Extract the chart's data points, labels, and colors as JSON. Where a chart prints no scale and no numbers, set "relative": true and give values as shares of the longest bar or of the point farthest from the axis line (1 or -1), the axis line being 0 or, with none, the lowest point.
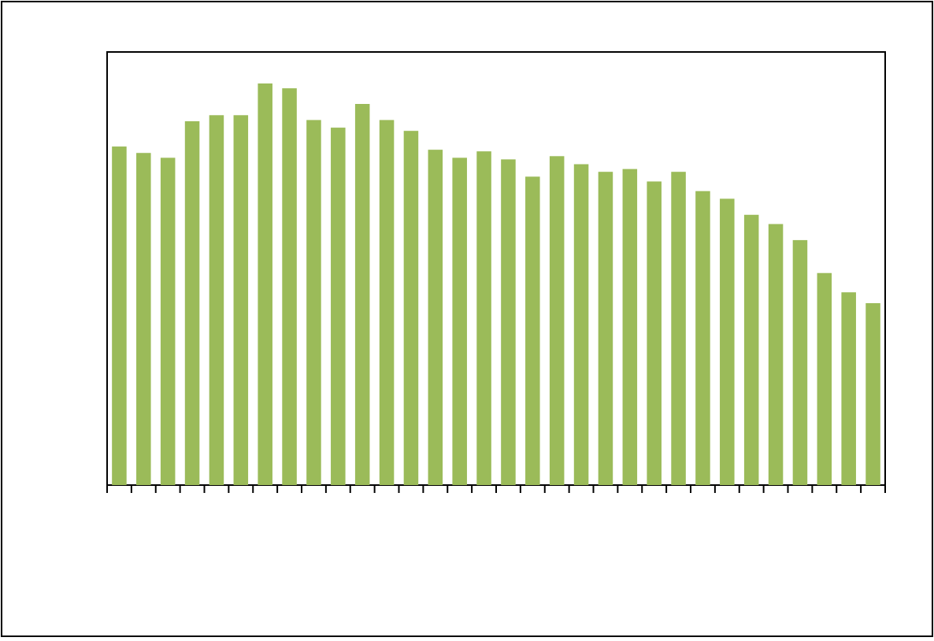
{
  "chart_data": {
    "type": "bar",
    "relative": true,
    "color": "#9bbb59",
    "categories": [
      null,
      null,
      null,
      null,
      null,
      null,
      null,
      null,
      null,
      null,
      null,
      null,
      null,
      null,
      null,
      null,
      null,
      null,
      null,
      null,
      null,
      null,
      null,
      null,
      null,
      null,
      null,
      null,
      null,
      null,
      null,
      null
    ],
    "values": [
      0.843,
      0.827,
      0.815,
      0.906,
      0.921,
      0.921,
      1,
      0.988,
      0.909,
      0.89,
      0.949,
      0.909,
      0.882,
      0.835,
      0.815,
      0.831,
      0.811,
      0.768,
      0.819,
      0.799,
      0.78,
      0.787,
      0.756,
      0.78,
      0.732,
      0.713,
      0.673,
      0.65,
      0.61,
      0.528,
      0.48,
      0.453
    ]
  }
}
